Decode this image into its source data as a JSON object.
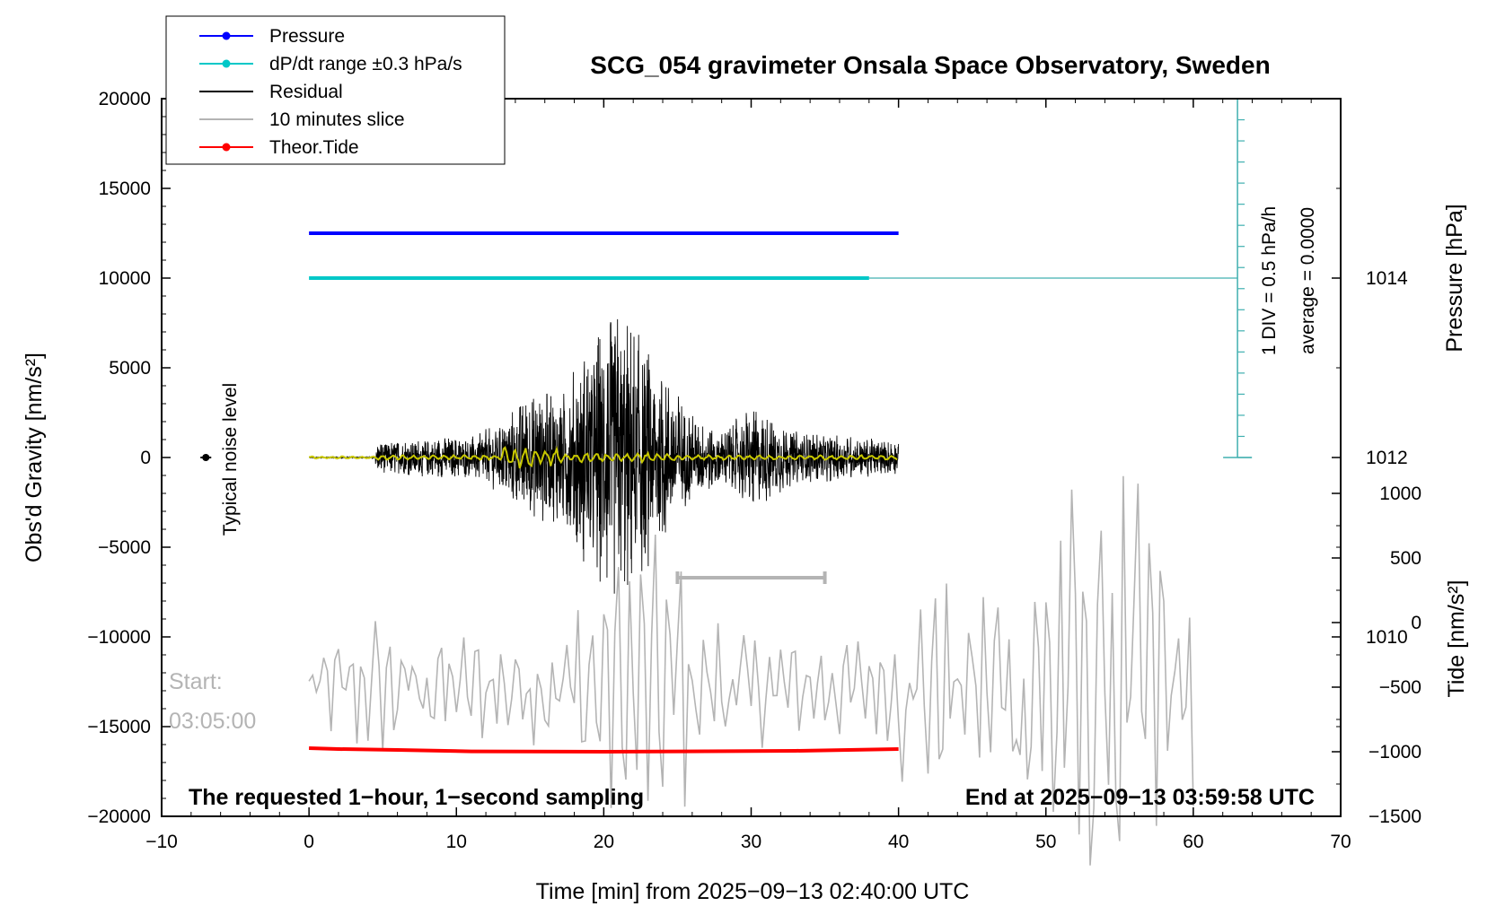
{
  "chart_data": {
    "type": "line",
    "title": "SCG_054 gravimeter Onsala Space Observatory, Sweden",
    "xlabel": "Time [min] from 2025−09−13 02:40:00 UTC",
    "ylabel_left": "Obs'd Gravity [nm/s²]",
    "ylabel_right_pressure": "Pressure [hPa]",
    "ylabel_right_tide": "Tide [nm/s²]",
    "xlim": [
      -10,
      70
    ],
    "ylim_left": [
      -20000,
      20000
    ],
    "ylim_pressure": [
      1008,
      1016
    ],
    "ylim_tide": [
      -1500,
      1000
    ],
    "x_ticks": [
      "−10",
      "0",
      "10",
      "20",
      "30",
      "40",
      "50",
      "60",
      "70"
    ],
    "y_ticks_left": [
      "20000",
      "15000",
      "10000",
      "5000",
      "0",
      "−5000",
      "−10000",
      "−15000",
      "−20000"
    ],
    "y_ticks_pressure": [
      "1014",
      "1012",
      "1010"
    ],
    "y_ticks_tide": [
      "1000",
      "500",
      "0",
      "−500",
      "−1000",
      "−1500"
    ],
    "grid": false,
    "legend_position": "top-left",
    "legend": [
      {
        "label": "Pressure",
        "color": "#0000ff",
        "marker": true
      },
      {
        "label": "dP/dt range ±0.3 hPa/s",
        "color": "#00c8c8",
        "marker": true
      },
      {
        "label": "Residual",
        "color": "#000000",
        "marker": false
      },
      {
        "label": "10 minutes slice",
        "color": "#b4b4b4",
        "marker": false
      },
      {
        "label": "Theor.Tide",
        "color": "#ff0000",
        "marker": true
      }
    ],
    "annotations": {
      "noise_label": "Typical noise level",
      "div_label": "1 DIV = 0.5 hPa/h",
      "average_label": "average = 0.0000",
      "start_label": "Start:",
      "start_time": "03:05:00",
      "bottom_left": "The requested 1−hour, 1−second sampling",
      "bottom_right": "End at 2025−09−13 03:59:58 UTC"
    },
    "series": {
      "pressure": {
        "x": [
          0,
          40
        ],
        "y_left_units": [
          12500,
          12500
        ],
        "color": "#0000ff"
      },
      "dpdt": {
        "x": [
          0,
          38
        ],
        "y_left_units": [
          10000,
          10000
        ],
        "color": "#00c8c8",
        "extension_to_x": 63
      },
      "theor_tide": {
        "x": [
          0,
          2,
          6,
          11,
          20,
          33,
          40
        ],
        "y_left_units": [
          -16200,
          -16250,
          -16300,
          -16380,
          -16400,
          -16350,
          -16250
        ],
        "color": "#ff0000"
      },
      "residual": {
        "x_start": 0,
        "x_end": 40,
        "quiet_until": 4.5,
        "color": "#000000",
        "envelope": [
          [
            4.5,
            900
          ],
          [
            8,
            1100
          ],
          [
            11,
            1200
          ],
          [
            13,
            2000
          ],
          [
            15,
            3800
          ],
          [
            17,
            3600
          ],
          [
            19,
            6500
          ],
          [
            20.5,
            8500
          ],
          [
            22,
            7500
          ],
          [
            23.5,
            5500
          ],
          [
            26,
            2500
          ],
          [
            28,
            1500
          ],
          [
            30,
            3000
          ],
          [
            33,
            1500
          ],
          [
            36,
            1300
          ],
          [
            40,
            900
          ]
        ]
      },
      "yellow_trace": {
        "color": "#c8c800"
      },
      "slice": {
        "x_start": 0,
        "x_end": 60,
        "color": "#b4b4b4",
        "bracket_x": [
          25,
          35
        ],
        "bracket_y_left_units": -6700,
        "envelope": [
          [
            0,
            250
          ],
          [
            4,
            500
          ],
          [
            10,
            400
          ],
          [
            17,
            450
          ],
          [
            18,
            700
          ],
          [
            21,
            1100
          ],
          [
            24,
            1000
          ],
          [
            25,
            1400
          ],
          [
            26,
            600
          ],
          [
            30,
            400
          ],
          [
            39,
            350
          ],
          [
            40,
            700
          ],
          [
            46,
            800
          ],
          [
            48,
            1500
          ],
          [
            54,
            1700
          ],
          [
            60,
            1100
          ]
        ]
      },
      "noise_dot": {
        "x": -7,
        "y": 0,
        "color": "#000000"
      },
      "div_scale": {
        "x": 63,
        "y_top_left_units": 20000,
        "y_bottom_left_units": 0,
        "divisions": 17,
        "color": "#40b0b0"
      }
    }
  }
}
